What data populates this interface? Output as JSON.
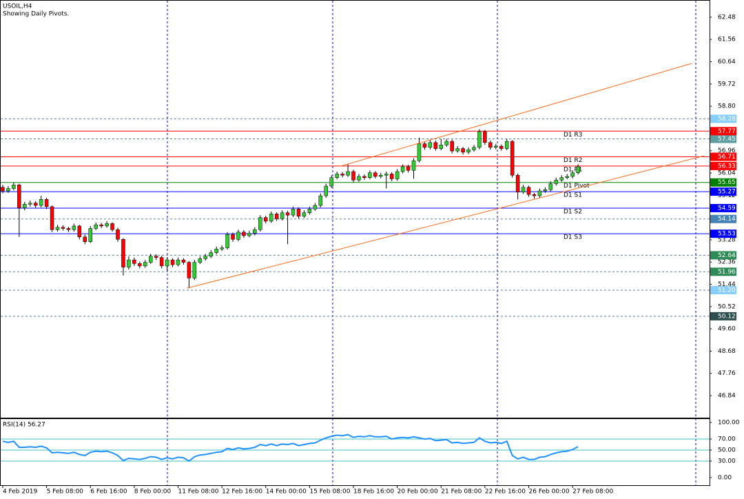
{
  "chart_data": {
    "type": "candlestick",
    "title": "USOIL,H4",
    "subtitle": "Showing Daily Pivots.",
    "xlim": [
      -0.5,
      129
    ],
    "xticks": [
      {
        "value": 0,
        "label": "4 Feb 2019"
      },
      {
        "value": 8,
        "label": "5 Feb 08:00"
      },
      {
        "value": 16,
        "label": "6 Feb 16:00"
      },
      {
        "value": 24,
        "label": "8 Feb 00:00"
      },
      {
        "value": 32,
        "label": "11 Feb 08:00"
      },
      {
        "value": 40,
        "label": "12 Feb 16:00"
      },
      {
        "value": 48,
        "label": "14 Feb 00:00"
      },
      {
        "value": 56,
        "label": "15 Feb 08:00"
      },
      {
        "value": 64,
        "label": "18 Feb 16:00"
      },
      {
        "value": 72,
        "label": "20 Feb 00:00"
      },
      {
        "value": 80,
        "label": "21 Feb 08:00"
      },
      {
        "value": 88,
        "label": "22 Feb 16:00"
      },
      {
        "value": 96,
        "label": "26 Feb 00:00"
      },
      {
        "value": 104,
        "label": "27 Feb 08:00"
      }
    ],
    "ylim": [
      45.93,
      63.19
    ],
    "yticks": [
      62.48,
      61.56,
      60.64,
      59.72,
      {
        "value": 58.8,
        "label": "58.80"
      },
      56.96,
      56.04,
      55.12,
      53.28,
      52.36,
      51.44,
      50.52,
      {
        "value": 49.6,
        "label": "49.60"
      },
      48.68,
      47.76,
      46.84
    ],
    "up_color": "#32cd32",
    "down_color": "#ff0000",
    "wick_color": "#000000",
    "candles": [
      [
        55.45,
        55.55,
        55.2,
        55.3
      ],
      [
        55.3,
        55.5,
        55.22,
        55.4
      ],
      [
        55.4,
        55.65,
        55.32,
        55.55
      ],
      [
        55.55,
        55.6,
        53.4,
        54.6
      ],
      [
        54.6,
        54.85,
        54.5,
        54.75
      ],
      [
        54.75,
        54.9,
        54.65,
        54.8
      ],
      [
        54.8,
        54.88,
        54.6,
        54.7
      ],
      [
        54.7,
        55.1,
        54.62,
        54.95
      ],
      [
        54.95,
        55.02,
        54.55,
        54.65
      ],
      [
        54.65,
        54.7,
        53.6,
        53.7
      ],
      [
        53.7,
        53.9,
        53.62,
        53.8
      ],
      [
        53.8,
        53.88,
        53.66,
        53.75
      ],
      [
        53.75,
        53.82,
        53.6,
        53.7
      ],
      [
        53.7,
        53.95,
        53.62,
        53.85
      ],
      [
        53.85,
        53.9,
        53.3,
        53.4
      ],
      [
        53.4,
        53.5,
        53.1,
        53.2
      ],
      [
        53.2,
        53.85,
        53.15,
        53.75
      ],
      [
        53.75,
        54.0,
        53.68,
        53.9
      ],
      [
        53.9,
        53.98,
        53.76,
        53.85
      ],
      [
        53.85,
        54.05,
        53.78,
        53.95
      ],
      [
        53.95,
        54.0,
        53.62,
        53.7
      ],
      [
        53.7,
        53.78,
        53.2,
        53.3
      ],
      [
        53.3,
        53.35,
        51.8,
        52.15
      ],
      [
        52.15,
        52.6,
        52.05,
        52.45
      ],
      [
        52.45,
        52.55,
        52.2,
        52.3
      ],
      [
        52.3,
        52.38,
        52.1,
        52.2
      ],
      [
        52.2,
        52.45,
        52.12,
        52.35
      ],
      [
        52.35,
        52.7,
        52.28,
        52.6
      ],
      [
        52.6,
        52.68,
        52.45,
        52.55
      ],
      [
        52.55,
        52.62,
        52.1,
        52.2
      ],
      [
        52.2,
        52.55,
        52.0,
        52.45
      ],
      [
        52.45,
        52.52,
        52.15,
        52.25
      ],
      [
        52.25,
        52.55,
        52.18,
        52.45
      ],
      [
        52.45,
        52.52,
        52.25,
        52.35
      ],
      [
        52.35,
        52.4,
        51.28,
        51.7
      ],
      [
        51.7,
        52.45,
        51.62,
        52.35
      ],
      [
        52.35,
        52.6,
        52.28,
        52.5
      ],
      [
        52.5,
        52.7,
        52.42,
        52.6
      ],
      [
        52.6,
        52.85,
        52.52,
        52.75
      ],
      [
        52.75,
        53.0,
        52.68,
        52.9
      ],
      [
        52.9,
        53.05,
        52.82,
        52.95
      ],
      [
        52.95,
        53.6,
        52.88,
        53.5
      ],
      [
        53.5,
        53.58,
        53.2,
        53.3
      ],
      [
        53.3,
        53.7,
        53.22,
        53.6
      ],
      [
        53.6,
        53.68,
        53.36,
        53.45
      ],
      [
        53.45,
        53.66,
        53.38,
        53.55
      ],
      [
        53.55,
        53.8,
        53.46,
        53.7
      ],
      [
        53.7,
        54.3,
        53.62,
        54.2
      ],
      [
        54.2,
        54.28,
        53.96,
        54.05
      ],
      [
        54.05,
        54.45,
        53.98,
        54.35
      ],
      [
        54.35,
        54.42,
        54.06,
        54.15
      ],
      [
        54.15,
        54.5,
        54.08,
        54.4
      ],
      [
        54.4,
        54.48,
        53.1,
        54.3
      ],
      [
        54.3,
        54.65,
        54.22,
        54.55
      ],
      [
        54.55,
        54.62,
        54.16,
        54.25
      ],
      [
        54.25,
        54.5,
        54.18,
        54.4
      ],
      [
        54.4,
        54.65,
        54.32,
        54.55
      ],
      [
        54.55,
        54.8,
        54.48,
        54.7
      ],
      [
        54.7,
        55.2,
        54.62,
        55.1
      ],
      [
        55.1,
        55.6,
        55.02,
        55.5
      ],
      [
        55.5,
        55.95,
        55.42,
        55.85
      ],
      [
        55.85,
        56.1,
        55.78,
        56.0
      ],
      [
        56.0,
        56.08,
        55.86,
        55.95
      ],
      [
        55.95,
        56.4,
        55.88,
        56.1
      ],
      [
        56.1,
        56.18,
        55.66,
        55.75
      ],
      [
        55.75,
        56.0,
        55.68,
        55.9
      ],
      [
        55.9,
        55.98,
        55.76,
        55.85
      ],
      [
        55.85,
        56.15,
        55.78,
        56.05
      ],
      [
        56.05,
        56.12,
        55.82,
        55.9
      ],
      [
        55.9,
        56.05,
        55.82,
        55.95
      ],
      [
        55.95,
        56.1,
        55.4,
        56.0
      ],
      [
        56.0,
        56.08,
        55.7,
        55.8
      ],
      [
        55.8,
        56.2,
        55.72,
        56.1
      ],
      [
        56.1,
        56.4,
        56.02,
        56.3
      ],
      [
        56.3,
        56.38,
        56.06,
        56.15
      ],
      [
        56.15,
        56.65,
        55.8,
        56.55
      ],
      [
        56.55,
        57.5,
        56.48,
        57.25
      ],
      [
        57.25,
        57.32,
        57.0,
        57.1
      ],
      [
        57.1,
        57.4,
        57.02,
        57.3
      ],
      [
        57.3,
        57.38,
        56.96,
        57.05
      ],
      [
        57.05,
        57.45,
        56.98,
        57.2
      ],
      [
        57.2,
        57.45,
        57.12,
        57.35
      ],
      [
        57.35,
        57.42,
        56.85,
        56.95
      ],
      [
        56.95,
        57.15,
        56.88,
        57.05
      ],
      [
        57.05,
        57.12,
        56.8,
        56.9
      ],
      [
        56.9,
        57.1,
        56.82,
        57.0
      ],
      [
        57.0,
        57.2,
        56.92,
        57.1
      ],
      [
        57.1,
        57.85,
        57.02,
        57.75
      ],
      [
        57.75,
        57.82,
        57.2,
        57.3
      ],
      [
        57.3,
        57.38,
        57.0,
        57.1
      ],
      [
        57.1,
        57.25,
        57.02,
        57.15
      ],
      [
        57.15,
        57.22,
        56.96,
        57.05
      ],
      [
        57.05,
        57.45,
        56.98,
        57.35
      ],
      [
        57.35,
        57.4,
        55.85,
        55.95
      ],
      [
        55.95,
        56.02,
        54.95,
        55.25
      ],
      [
        55.25,
        55.55,
        55.18,
        55.45
      ],
      [
        55.45,
        55.52,
        55.06,
        55.15
      ],
      [
        55.15,
        55.22,
        54.98,
        55.1
      ],
      [
        55.1,
        55.4,
        55.02,
        55.3
      ],
      [
        55.3,
        55.45,
        55.22,
        55.35
      ],
      [
        55.35,
        55.7,
        55.28,
        55.6
      ],
      [
        55.6,
        55.85,
        55.52,
        55.75
      ],
      [
        55.75,
        55.95,
        55.68,
        55.85
      ],
      [
        55.85,
        56.0,
        55.78,
        55.9
      ],
      [
        55.9,
        56.15,
        55.82,
        56.05
      ],
      [
        56.05,
        56.4,
        55.98,
        56.3
      ]
    ],
    "pivots": [
      {
        "name": "D1 R3",
        "value": 57.77,
        "color": "#ff0000"
      },
      {
        "name": "D1 R2",
        "value": 56.71,
        "color": "#ff0000"
      },
      {
        "name": "D1 R1",
        "value": 56.33,
        "color": "#ff0000"
      },
      {
        "name": "D1 Pivot",
        "value": 55.65,
        "color": "#008000"
      },
      {
        "name": "D1 S1",
        "value": 55.27,
        "color": "#0000ff"
      },
      {
        "name": "D1 S2",
        "value": 54.59,
        "color": "#0000ff"
      },
      {
        "name": "D1 S3",
        "value": 53.53,
        "color": "#0000ff"
      }
    ],
    "levels": [
      {
        "value": 58.28,
        "color": "#87cefa"
      },
      {
        "value": 57.45,
        "color": "#5f9ea0"
      },
      {
        "value": 54.14,
        "color": "#4682b4"
      },
      {
        "value": 52.64,
        "color": "#2e8b57"
      },
      {
        "value": 51.96,
        "color": "#2e8b57"
      },
      {
        "value": 51.2,
        "label": "51.20",
        "color": "#87cefa"
      },
      {
        "value": 50.12,
        "color": "#2f4f4f"
      }
    ],
    "trendlines": [
      {
        "x": [
          33.6,
          128
        ],
        "y": [
          51.28,
          56.75
        ],
        "color": "#ff6a1a"
      },
      {
        "x": [
          61.6,
          125.75
        ],
        "y": [
          56.32,
          60.57
        ],
        "color": "#ff6a1a"
      }
    ],
    "rsi": {
      "type": "line",
      "title": "RSI(14) 56.27",
      "color": "#1e90ff",
      "ylim": [
        -15,
        107.5
      ],
      "yticks": [
        {
          "value": 100,
          "label": "100.00"
        },
        {
          "value": 70,
          "label": "70.00"
        },
        {
          "value": 50,
          "label": "50.00"
        },
        {
          "value": 30,
          "label": "30.00"
        },
        {
          "value": 0,
          "label": "0.00"
        }
      ],
      "values": [
        66,
        64,
        66,
        55,
        55,
        56,
        55,
        57,
        54,
        45,
        46,
        45,
        44,
        46,
        42,
        40,
        46,
        48,
        47,
        48,
        45,
        40,
        31,
        35,
        34,
        33,
        35,
        38,
        37,
        33,
        36,
        34,
        37,
        36,
        30,
        38,
        41,
        42,
        44,
        46,
        47,
        53,
        51,
        54,
        52,
        53,
        55,
        60,
        58,
        61,
        58,
        61,
        60,
        62,
        58,
        60,
        62,
        63,
        68,
        72,
        75,
        77,
        76,
        78,
        73,
        75,
        74,
        76,
        74,
        74,
        75,
        70,
        72,
        73,
        72,
        74,
        72,
        70,
        71,
        67,
        68,
        69,
        63,
        64,
        62,
        63,
        64,
        72,
        66,
        63,
        64,
        62,
        66,
        40,
        34,
        37,
        33,
        33,
        37,
        38,
        42,
        45,
        47,
        48,
        51,
        56.27
      ]
    }
  }
}
